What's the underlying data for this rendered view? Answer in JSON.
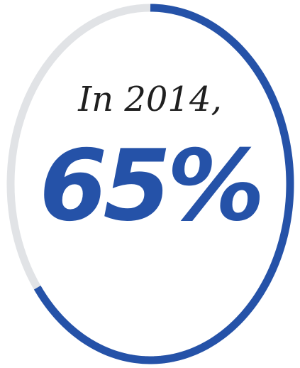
{
  "chart_data": {
    "type": "pie",
    "intro_text": "In 2014,",
    "value_label": "65%",
    "value": 65,
    "max": 100,
    "progress_color": "#2552a8",
    "track_color": "#e1e3e6"
  }
}
